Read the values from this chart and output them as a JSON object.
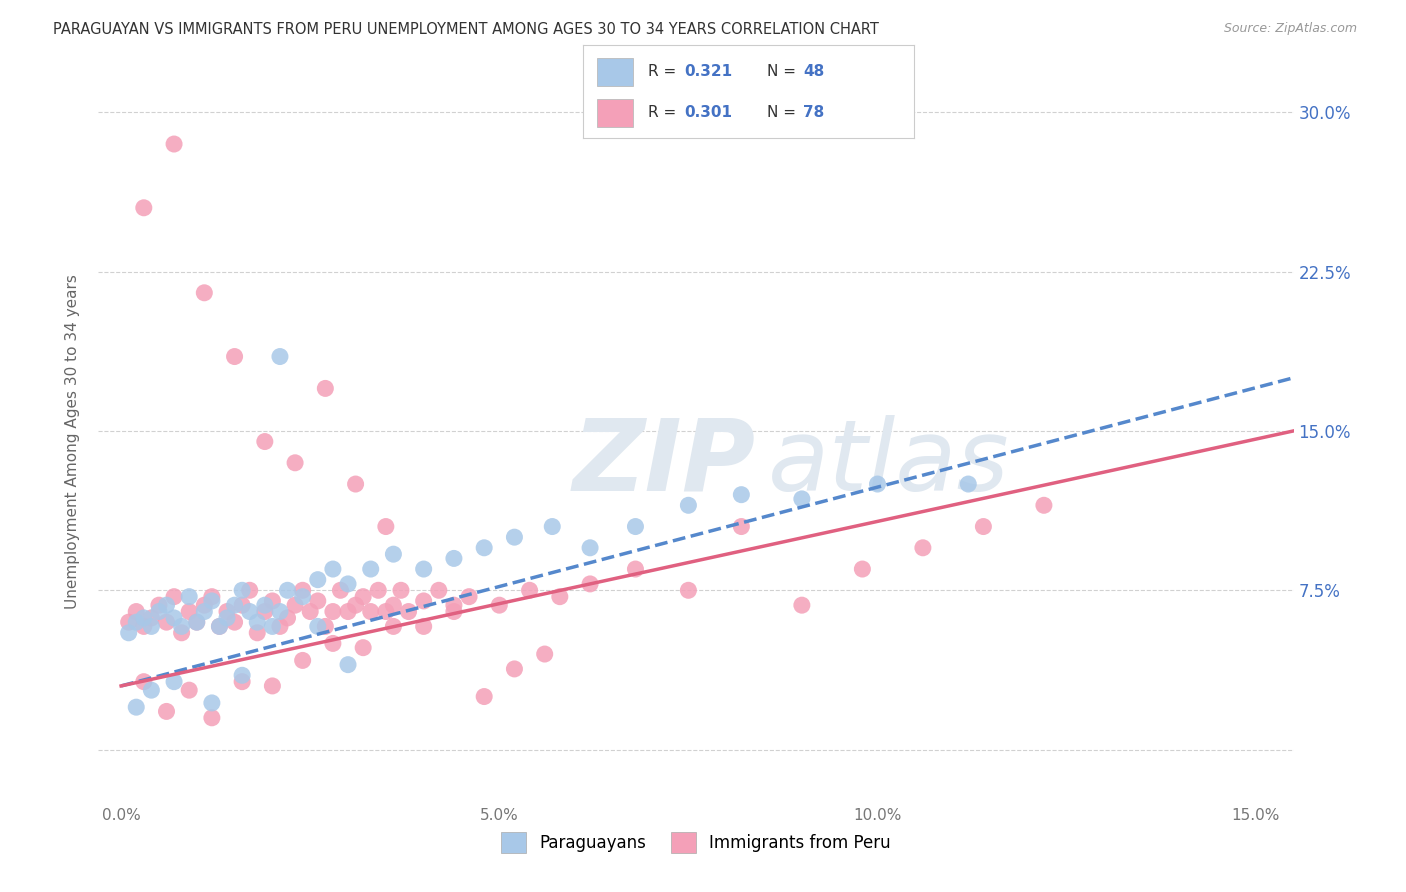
{
  "title": "PARAGUAYAN VS IMMIGRANTS FROM PERU UNEMPLOYMENT AMONG AGES 30 TO 34 YEARS CORRELATION CHART",
  "source": "Source: ZipAtlas.com",
  "ylabel": "Unemployment Among Ages 30 to 34 years",
  "xlim": [
    -0.003,
    0.155
  ],
  "ylim": [
    -0.025,
    0.315
  ],
  "blue_color": "#a8c8e8",
  "pink_color": "#f4a0b8",
  "blue_line_color": "#5588cc",
  "pink_line_color": "#e06080",
  "legend_r_blue": "0.321",
  "legend_n_blue": "48",
  "legend_r_pink": "0.301",
  "legend_n_pink": "78",
  "blue_scatter_x": [
    0.001,
    0.002,
    0.003,
    0.004,
    0.005,
    0.006,
    0.007,
    0.008,
    0.009,
    0.01,
    0.011,
    0.012,
    0.013,
    0.014,
    0.015,
    0.016,
    0.017,
    0.018,
    0.019,
    0.02,
    0.021,
    0.022,
    0.024,
    0.026,
    0.028,
    0.03,
    0.033,
    0.036,
    0.04,
    0.044,
    0.048,
    0.052,
    0.057,
    0.062,
    0.068,
    0.075,
    0.082,
    0.09,
    0.1,
    0.112,
    0.002,
    0.004,
    0.007,
    0.012,
    0.016,
    0.021,
    0.026,
    0.03
  ],
  "blue_scatter_y": [
    0.055,
    0.06,
    0.062,
    0.058,
    0.065,
    0.068,
    0.062,
    0.058,
    0.072,
    0.06,
    0.065,
    0.07,
    0.058,
    0.062,
    0.068,
    0.075,
    0.065,
    0.06,
    0.068,
    0.058,
    0.065,
    0.075,
    0.072,
    0.08,
    0.085,
    0.078,
    0.085,
    0.092,
    0.085,
    0.09,
    0.095,
    0.1,
    0.105,
    0.095,
    0.105,
    0.115,
    0.12,
    0.118,
    0.125,
    0.125,
    0.02,
    0.028,
    0.032,
    0.022,
    0.035,
    0.185,
    0.058,
    0.04
  ],
  "pink_scatter_x": [
    0.001,
    0.002,
    0.003,
    0.004,
    0.005,
    0.006,
    0.007,
    0.008,
    0.009,
    0.01,
    0.011,
    0.012,
    0.013,
    0.014,
    0.015,
    0.016,
    0.017,
    0.018,
    0.019,
    0.02,
    0.021,
    0.022,
    0.023,
    0.024,
    0.025,
    0.026,
    0.027,
    0.028,
    0.029,
    0.03,
    0.031,
    0.032,
    0.033,
    0.034,
    0.035,
    0.036,
    0.037,
    0.038,
    0.04,
    0.042,
    0.044,
    0.046,
    0.05,
    0.054,
    0.058,
    0.062,
    0.068,
    0.075,
    0.082,
    0.09,
    0.098,
    0.106,
    0.114,
    0.122,
    0.003,
    0.006,
    0.009,
    0.012,
    0.016,
    0.02,
    0.024,
    0.028,
    0.032,
    0.036,
    0.04,
    0.044,
    0.048,
    0.052,
    0.056,
    0.003,
    0.007,
    0.011,
    0.015,
    0.019,
    0.023,
    0.027,
    0.031,
    0.035
  ],
  "pink_scatter_y": [
    0.06,
    0.065,
    0.058,
    0.062,
    0.068,
    0.06,
    0.072,
    0.055,
    0.065,
    0.06,
    0.068,
    0.072,
    0.058,
    0.065,
    0.06,
    0.068,
    0.075,
    0.055,
    0.065,
    0.07,
    0.058,
    0.062,
    0.068,
    0.075,
    0.065,
    0.07,
    0.058,
    0.065,
    0.075,
    0.065,
    0.068,
    0.072,
    0.065,
    0.075,
    0.065,
    0.068,
    0.075,
    0.065,
    0.07,
    0.075,
    0.068,
    0.072,
    0.068,
    0.075,
    0.072,
    0.078,
    0.085,
    0.075,
    0.105,
    0.068,
    0.085,
    0.095,
    0.105,
    0.115,
    0.032,
    0.018,
    0.028,
    0.015,
    0.032,
    0.03,
    0.042,
    0.05,
    0.048,
    0.058,
    0.058,
    0.065,
    0.025,
    0.038,
    0.045,
    0.255,
    0.285,
    0.215,
    0.185,
    0.145,
    0.135,
    0.17,
    0.125,
    0.105
  ],
  "blue_trend_x": [
    0.0,
    0.155
  ],
  "blue_trend_y": [
    0.03,
    0.175
  ],
  "pink_trend_x": [
    0.0,
    0.155
  ],
  "pink_trend_y": [
    0.03,
    0.15
  ],
  "ytick_positions": [
    0.0,
    0.075,
    0.15,
    0.225,
    0.3
  ],
  "ytick_labels": [
    "",
    "7.5%",
    "15.0%",
    "22.5%",
    "30.0%"
  ],
  "xtick_positions": [
    0.0,
    0.05,
    0.1,
    0.15
  ],
  "xtick_labels": [
    "0.0%",
    "5.0%",
    "10.0%",
    "15.0%"
  ],
  "background_color": "#ffffff",
  "grid_color": "#cccccc"
}
